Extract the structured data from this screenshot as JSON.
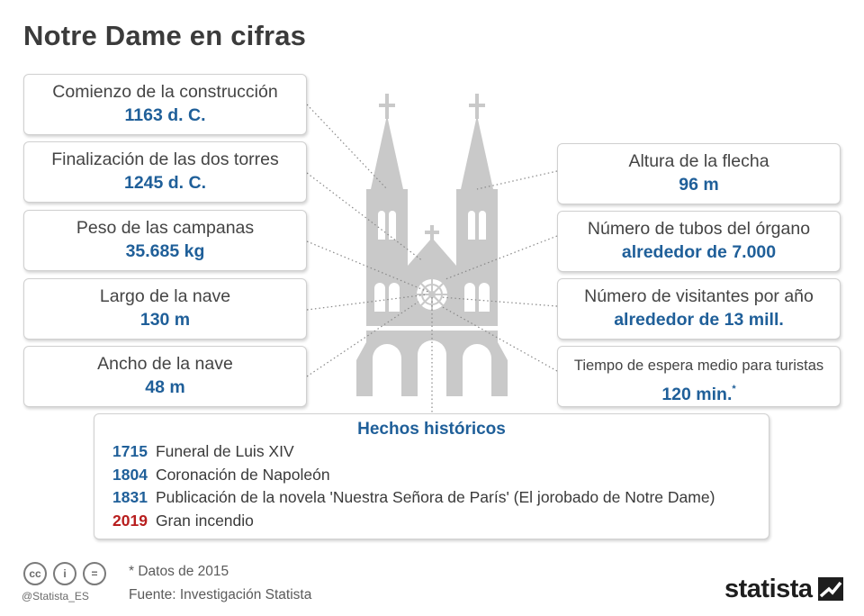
{
  "title": "Notre Dame en cifras",
  "left_stats": [
    {
      "label": "Comienzo de la construcción",
      "value": "1163 d. C."
    },
    {
      "label": "Finalización de las dos torres",
      "value": "1245 d. C."
    },
    {
      "label": "Peso de las campanas",
      "value": "35.685 kg"
    },
    {
      "label": "Largo de la nave",
      "value": "130 m"
    },
    {
      "label": "Ancho de la nave",
      "value": "48 m"
    }
  ],
  "right_stats": [
    {
      "label": "Altura de la flecha",
      "value": "96 m"
    },
    {
      "label": "Número de tubos del órgano",
      "value": "alrededor de 7.000"
    },
    {
      "label": "Número de visitantes por año",
      "value": "alrededor de 13 mill."
    },
    {
      "label": "Tiempo de espera medio para turistas",
      "value": "120 min.",
      "footnote_mark": "*"
    }
  ],
  "history": {
    "title": "Hechos históricos",
    "events": [
      {
        "year": "1715",
        "text": "Funeral de Luis XIV"
      },
      {
        "year": "1804",
        "text": "Coronación de Napoleón"
      },
      {
        "year": "1831",
        "text": "Publicación de la novela 'Nuestra Señora de París' (El jorobado de Notre Dame)"
      },
      {
        "year": "2019",
        "text": "Gran incendio"
      }
    ]
  },
  "footnote": "* Datos de 2015",
  "source": "Fuente: Investigación Statista",
  "handle": "@Statista_ES",
  "license_icons": [
    "cc-icon",
    "by-icon",
    "nd-icon"
  ],
  "license_icon_glyphs": [
    "cc",
    "i",
    "="
  ],
  "brand": "statista",
  "colors": {
    "accent": "#1f5f99",
    "highlight": "#b81e1e",
    "building": "#c9c9c9"
  }
}
